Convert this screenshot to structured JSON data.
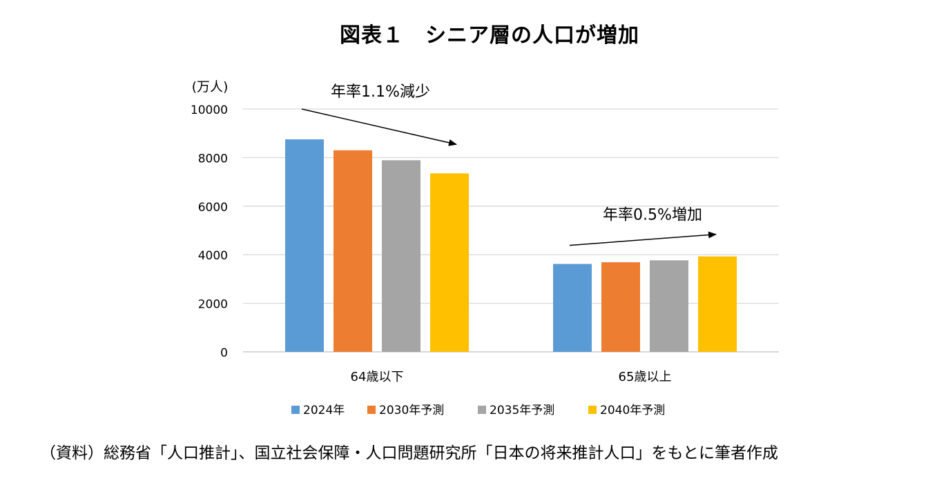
{
  "title": "図表１　シニア層の人口が増加",
  "source": "（資料）総務省「人口推計」、国立社会保障・人口問題研究所「日本の将来推計人口」をもとに筆者作成",
  "chart_data": {
    "type": "bar",
    "ylabel": "(万人)",
    "ylim": [
      0,
      10000
    ],
    "yticks": [
      "0",
      "2000",
      "4000",
      "6000",
      "8000",
      "10000"
    ],
    "grid": true,
    "legend_position": "bottom",
    "categories": [
      "64歳以下",
      "65歳以上"
    ],
    "series": [
      {
        "name": "2024年",
        "color": "#5B9BD5",
        "values": [
          8750,
          3620
        ]
      },
      {
        "name": "2030年予測",
        "color": "#ED7D31",
        "values": [
          8300,
          3690
        ]
      },
      {
        "name": "2035年予測",
        "color": "#A5A5A5",
        "values": [
          7890,
          3770
        ]
      },
      {
        "name": "2040年予測",
        "color": "#FFC000",
        "values": [
          7350,
          3930
        ]
      }
    ],
    "annotations": [
      {
        "text": "年率1.1%減少",
        "direction": "down",
        "group": "64歳以下"
      },
      {
        "text": "年率0.5%増加",
        "direction": "up",
        "group": "65歳以上"
      }
    ]
  }
}
